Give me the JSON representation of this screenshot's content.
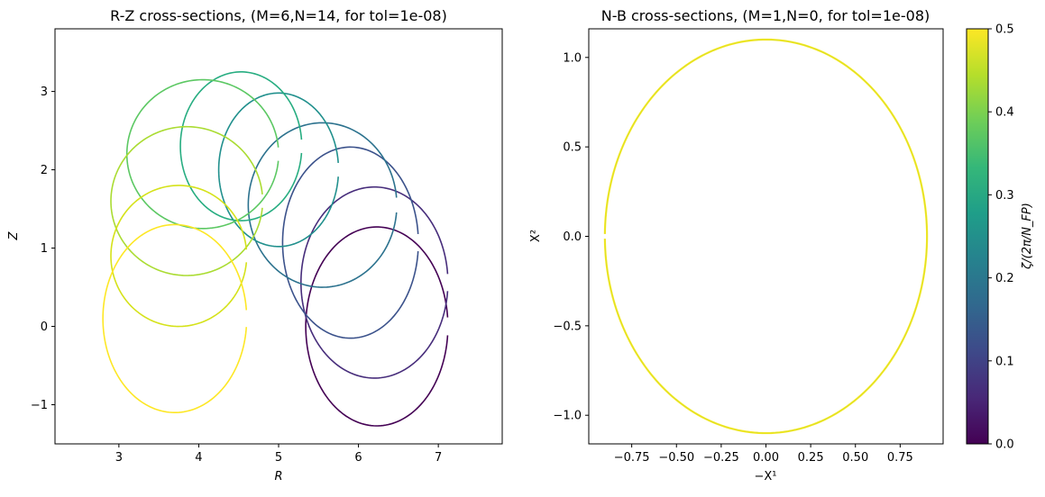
{
  "chart_data": [
    {
      "type": "line",
      "title": "R-Z cross-sections, (M=6,N=14, for tol=1e-08)",
      "xlabel": "R",
      "ylabel": "Z",
      "xlim": [
        2.2,
        7.8
      ],
      "ylim": [
        -1.5,
        3.8
      ],
      "xticks": [
        3,
        4,
        5,
        6,
        7
      ],
      "yticks": [
        -1,
        0,
        1,
        2,
        3
      ],
      "xtick_labels": [
        "3",
        "4",
        "5",
        "6",
        "7"
      ],
      "ytick_labels": [
        "−1",
        "0",
        "1",
        "2",
        "3"
      ],
      "grid": false,
      "colormap": "viridis",
      "series": [
        {
          "zeta": 0.0,
          "color": "#440154",
          "center": [
            6.23,
            0.0
          ],
          "radii": [
            0.89,
            1.27
          ]
        },
        {
          "zeta": 0.056,
          "color": "#472d7b",
          "center": [
            6.2,
            0.56
          ],
          "radii": [
            0.92,
            1.22
          ]
        },
        {
          "zeta": 0.111,
          "color": "#3b528b",
          "center": [
            5.9,
            1.07
          ],
          "radii": [
            0.85,
            1.22
          ]
        },
        {
          "zeta": 0.167,
          "color": "#2c728e",
          "center": [
            5.55,
            1.55
          ],
          "radii": [
            0.93,
            1.05
          ]
        },
        {
          "zeta": 0.222,
          "color": "#21908d",
          "center": [
            5.0,
            2.0
          ],
          "radii": [
            0.75,
            0.98
          ]
        },
        {
          "zeta": 0.278,
          "color": "#27ad81",
          "center": [
            4.53,
            2.3
          ],
          "radii": [
            0.76,
            0.95
          ]
        },
        {
          "zeta": 0.333,
          "color": "#5cc863",
          "center": [
            4.05,
            2.2
          ],
          "radii": [
            0.95,
            0.95
          ]
        },
        {
          "zeta": 0.389,
          "color": "#aadc32",
          "center": [
            3.85,
            1.6
          ],
          "radii": [
            0.95,
            0.95
          ]
        },
        {
          "zeta": 0.444,
          "color": "#d5e21a",
          "center": [
            3.75,
            0.9
          ],
          "radii": [
            0.85,
            0.9
          ]
        },
        {
          "zeta": 0.5,
          "color": "#fde725",
          "center": [
            3.7,
            0.1
          ],
          "radii": [
            0.9,
            1.2
          ]
        }
      ]
    },
    {
      "type": "line",
      "title": "N-B cross-sections, (M=1,N=0, for tol=1e-08)",
      "xlabel": "−X¹",
      "ylabel": "X²",
      "xlim": [
        -0.99,
        0.99
      ],
      "ylim": [
        -1.16,
        1.16
      ],
      "xticks": [
        -0.75,
        -0.5,
        -0.25,
        0.0,
        0.25,
        0.5,
        0.75
      ],
      "yticks": [
        -1.0,
        -0.5,
        0.0,
        0.5,
        1.0
      ],
      "xtick_labels": [
        "−0.75",
        "−0.50",
        "−0.25",
        "0.00",
        "0.25",
        "0.50",
        "0.75"
      ],
      "ytick_labels": [
        "−1.0",
        "−0.5",
        "0.0",
        "0.5",
        "1.0"
      ],
      "grid": false,
      "series": [
        {
          "shape": "ellipse",
          "color": "#fde725",
          "rx": 0.9,
          "ry": 1.1
        }
      ]
    }
  ],
  "colorbar": {
    "label": "ζ/(2π/N_FP)",
    "range": [
      0.0,
      0.5
    ],
    "ticks": [
      0.0,
      0.1,
      0.2,
      0.3,
      0.4,
      0.5
    ],
    "tick_labels": [
      "0.0",
      "0.1",
      "0.2",
      "0.3",
      "0.4",
      "0.5"
    ],
    "colormap": "viridis",
    "stops": [
      "#440154",
      "#482878",
      "#3e4989",
      "#31688e",
      "#26828e",
      "#1f9e89",
      "#35b779",
      "#6ece58",
      "#b5de2b",
      "#fde725"
    ]
  }
}
